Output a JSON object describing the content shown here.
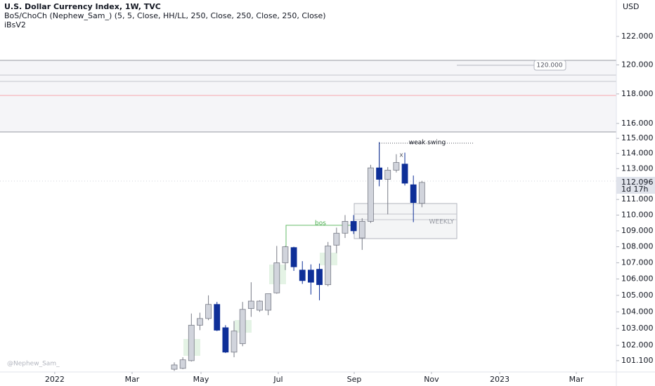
{
  "chart_data": {
    "type": "candlestick",
    "title": "U.S. Dollar Currency Index, 1W, TVC",
    "indicators": [
      "BoS/ChoCh (Nephew_Sam_) (5, 5, Close, HH/LL, 250, Close, 250, Close, 250, Close)",
      "iBsV2"
    ],
    "currency": "USD",
    "log_scale": true,
    "up_color": "#d1d4dc",
    "down_color": "#0e2f98",
    "x": [
      0,
      1,
      2,
      3,
      4,
      5,
      6,
      7,
      8,
      9,
      10,
      11,
      12,
      13,
      14,
      15,
      16,
      17,
      18,
      19,
      20,
      21,
      22,
      23,
      24,
      25,
      26,
      27,
      28,
      29
    ],
    "open": [
      100.6,
      100.65,
      101.1,
      103.2,
      103.6,
      104.45,
      103.05,
      101.6,
      102.1,
      104.2,
      104.1,
      104.1,
      105.15,
      107.0,
      107.95,
      106.55,
      106.55,
      106.6,
      105.65,
      108.1,
      108.85,
      109.6,
      108.55,
      109.6,
      113.05,
      112.3,
      112.9,
      113.3,
      111.95,
      110.75
    ],
    "high": [
      101.0,
      101.3,
      103.9,
      103.95,
      105.0,
      104.6,
      103.2,
      103.45,
      104.6,
      105.8,
      104.7,
      105.1,
      108.05,
      108.05,
      108.0,
      107.1,
      106.9,
      106.95,
      108.3,
      109.2,
      110.0,
      110.0,
      109.8,
      113.25,
      114.75,
      113.1,
      113.95,
      114.05,
      112.55,
      112.2
    ],
    "low": [
      100.5,
      100.6,
      101.05,
      102.9,
      103.5,
      102.85,
      101.55,
      101.3,
      101.95,
      103.7,
      104.0,
      103.8,
      105.1,
      106.55,
      106.5,
      105.7,
      105.05,
      104.7,
      105.55,
      107.6,
      108.55,
      108.8,
      107.8,
      109.5,
      111.85,
      110.05,
      112.75,
      111.9,
      109.55,
      110.5
    ],
    "close": [
      100.85,
      101.15,
      103.2,
      103.6,
      104.45,
      102.9,
      101.6,
      102.85,
      104.15,
      104.65,
      104.65,
      105.1,
      107.0,
      108.0,
      106.75,
      105.9,
      105.8,
      105.65,
      108.05,
      108.85,
      109.6,
      109.0,
      109.6,
      113.05,
      112.3,
      112.9,
      113.4,
      112.05,
      110.8,
      112.1
    ],
    "ylim": [
      100.44,
      124.6
    ],
    "yticks": [
      {
        "value": 122,
        "label": "122.000"
      },
      {
        "value": 120,
        "label": "120.000"
      },
      {
        "value": 118,
        "label": "118.000"
      },
      {
        "value": 116,
        "label": "116.000"
      },
      {
        "value": 115,
        "label": "115.000"
      },
      {
        "value": 114,
        "label": "114.000"
      },
      {
        "value": 113,
        "label": "113.000"
      },
      {
        "value": 111,
        "label": "111.000"
      },
      {
        "value": 110,
        "label": "110.000"
      },
      {
        "value": 109,
        "label": "109.000"
      },
      {
        "value": 108,
        "label": "108.000"
      },
      {
        "value": 107,
        "label": "107.000"
      },
      {
        "value": 106,
        "label": "106.000"
      },
      {
        "value": 105,
        "label": "105.000"
      },
      {
        "value": 104,
        "label": "104.000"
      },
      {
        "value": 103,
        "label": "103.000"
      },
      {
        "value": 102,
        "label": "102.000"
      },
      {
        "value": 101.1,
        "label": "101.100"
      }
    ],
    "xlim": [
      -20.41,
      51.77
    ],
    "xticks": [
      {
        "value": -14.0,
        "label": "2022"
      },
      {
        "value": -4.94,
        "label": "Mar"
      },
      {
        "value": 3.13,
        "label": "May"
      },
      {
        "value": 12.18,
        "label": "Jul"
      },
      {
        "value": 21.07,
        "label": "Sep"
      },
      {
        "value": 30.12,
        "label": "Nov"
      },
      {
        "value": 38.11,
        "label": "2023"
      },
      {
        "value": 47.08,
        "label": "Mar"
      }
    ],
    "last_price": {
      "value": 112.096,
      "label": "112.096"
    },
    "countdown": "1d 17h",
    "annotations": {
      "bos": "bos",
      "weak_swing": "weak swing",
      "mark": "x",
      "zone": "WEEKLY",
      "level": "120.000"
    },
    "watermark": "@Nephew_Sam_"
  }
}
